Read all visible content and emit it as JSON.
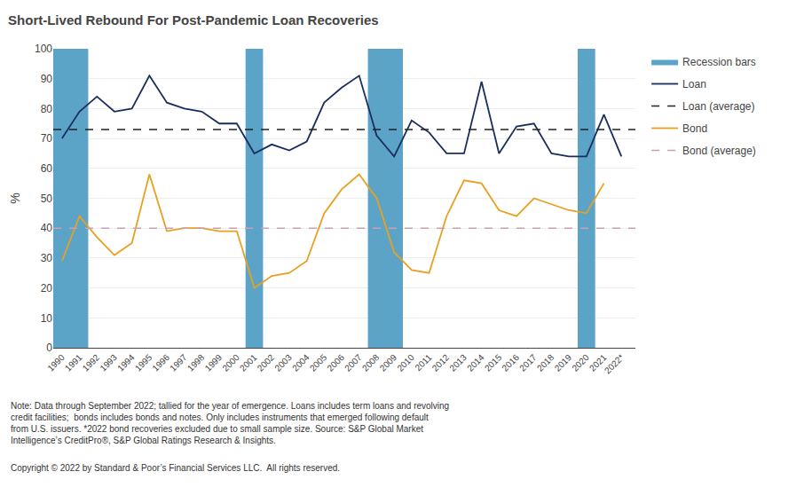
{
  "chart_data": {
    "type": "line",
    "title": "Short-Lived Rebound For Post-Pandemic Loan Recoveries",
    "y_label": "%",
    "x": [
      1990,
      1991,
      1992,
      1993,
      1994,
      1995,
      1996,
      1997,
      1998,
      1999,
      2000,
      2001,
      2002,
      2003,
      2004,
      2005,
      2006,
      2007,
      2008,
      2009,
      2010,
      2011,
      2012,
      2013,
      2014,
      2015,
      2016,
      2017,
      2018,
      2019,
      2020,
      2021,
      2022
    ],
    "xlim": [
      1989.5,
      2022.8
    ],
    "xticks": [
      1990,
      1991,
      1992,
      1993,
      1994,
      1995,
      1996,
      1997,
      1998,
      1999,
      2000,
      2001,
      2002,
      2003,
      2004,
      2005,
      2006,
      2007,
      2008,
      2009,
      2010,
      2011,
      2012,
      2013,
      2014,
      2015,
      2016,
      2017,
      2018,
      2019,
      2020,
      2021,
      {
        "value": 2022,
        "label": "2022*"
      }
    ],
    "ylim": [
      0,
      100
    ],
    "yticks": [
      0,
      10,
      20,
      30,
      40,
      50,
      60,
      70,
      80,
      90,
      100
    ],
    "grid": true,
    "legend": "right",
    "series": [
      {
        "name": "Recession bars",
        "type": "span",
        "color": "#5ba4c8",
        "spans": [
          [
            1989.5,
            1991.5
          ],
          [
            2000.5,
            2001.5
          ],
          [
            2007.5,
            2009.5
          ],
          [
            2019.5,
            2020.5
          ]
        ]
      },
      {
        "name": "Loan",
        "type": "line",
        "color": "#1a2e5e",
        "line_style": "solid",
        "values": [
          70,
          79,
          84,
          79,
          80,
          91,
          82,
          80,
          79,
          75,
          75,
          65,
          68,
          66,
          69,
          82,
          87,
          91,
          71,
          64,
          76,
          72,
          65,
          65,
          89,
          65,
          74,
          75,
          65,
          64,
          64,
          78,
          64
        ]
      },
      {
        "name": "Loan (average)",
        "type": "hline",
        "color": "#222222",
        "line_style": "dashed",
        "value": 73
      },
      {
        "name": "Bond",
        "type": "line",
        "color": "#e8a020",
        "line_style": "solid",
        "values": [
          29,
          44,
          37,
          31,
          35,
          58,
          39,
          40,
          40,
          39,
          39,
          20,
          24,
          25,
          29,
          45,
          53,
          58,
          50,
          32,
          26,
          25,
          44,
          56,
          55,
          46,
          44,
          50,
          48,
          46,
          45,
          55,
          null
        ]
      },
      {
        "name": "Bond (average)",
        "type": "hline",
        "color": "#c8a0b0",
        "line_style": "dashed",
        "value": 40
      }
    ],
    "annotations": [
      "Note: Data through September 2022; tallied for the year of emergence. Loans includes term loans and revolving\ncredit facilities;  bonds includes bonds and notes. Only includes instruments that emerged following default\nfrom U.S. issuers. *2022 bond recoveries excluded due to small sample size. Source: S&P Global Market\nIntelligence’s CreditPro®, S&P Global Ratings Research & Insights.",
      "Copyright © 2022 by Standard & Poor’s Financial Services LLC.  All rights reserved."
    ]
  }
}
